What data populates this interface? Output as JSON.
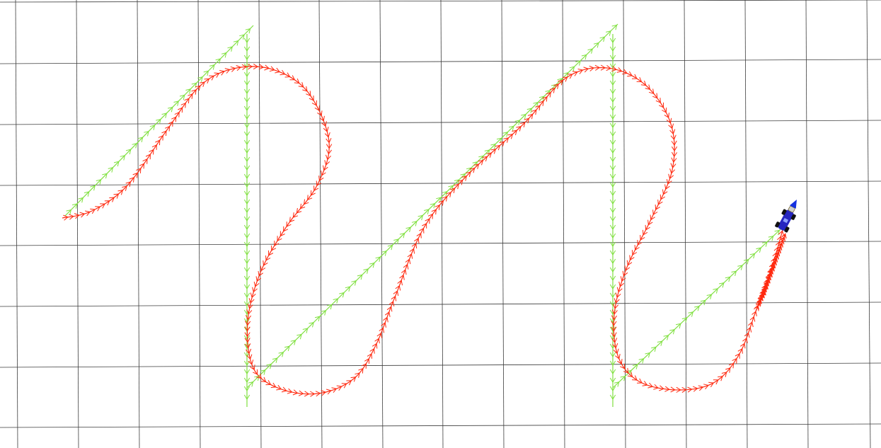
{
  "viewport": {
    "background": "#ffffff",
    "grid_color": "#3c3c3c",
    "grid_visible": true
  },
  "planned_path": {
    "name": "planned-path",
    "color": "#80e040",
    "marker": "chevron-arrow"
  },
  "driven_path": {
    "name": "driven-path",
    "color": "#ff2a10",
    "marker": "chevron-arrow"
  },
  "robot": {
    "icon": "car-robot-icon",
    "body_color": "#2626c0",
    "heading_arrow_color": "#1430e0",
    "wheel_color": "#111111",
    "sensor_color": "#cfcfcf"
  }
}
